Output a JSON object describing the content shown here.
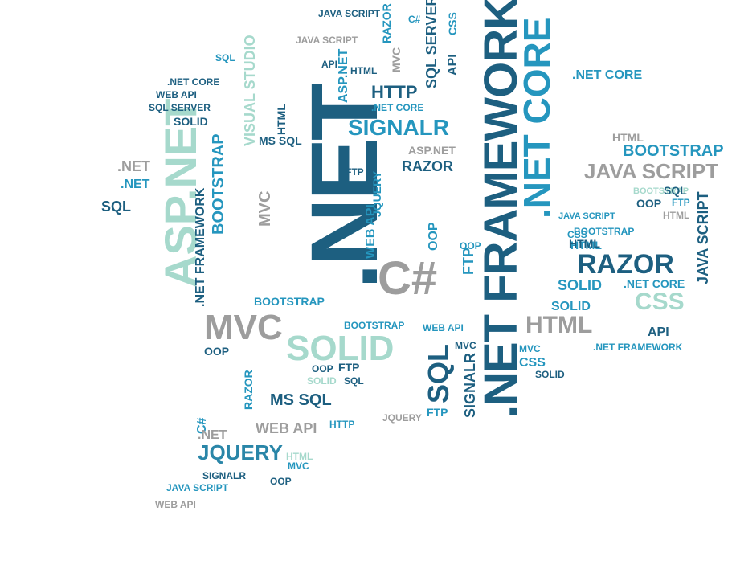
{
  "cloud": {
    "net_big": ".NET",
    "net_framework_big": ".NET FRAMEWORK",
    "net_core_big": ".NET CORE",
    "aspnet_big": "ASP.NET",
    "csharp_big": "C#",
    "solid_big": "SOLID",
    "mvc_big": "MVC",
    "java_script_big": "JAVA SCRIPT",
    "razor_big": "RAZOR",
    "signalr_big": "SIGNALR",
    "html_big": "HTML",
    "css_big": "CSS",
    "sql_big": "SQL",
    "jquery_big": "JQUERY",
    "ms_sql": "MS SQL",
    "web_api": "WEB API",
    "bootstrap": "BOOTSTRAP",
    "http": "HTTP",
    "sql_server": "SQL SERVER",
    "visual_studio": "VISUAL STUDIO",
    "net_framework": ".NET FRAMEWORK",
    "net_core": ".NET CORE",
    "net": ".NET",
    "asp_net": "ASP.NET",
    "java_script": "JAVA SCRIPT",
    "api": "API",
    "oop": "OOP",
    "ftp": "FTP",
    "mvc": "MVC",
    "csharp": "C#",
    "solid": "SOLID",
    "razor": "RAZOR",
    "html": "HTML",
    "css": "CSS",
    "sql": "SQL",
    "jquery": "JQUERY",
    "signalr": "SIGNALR"
  },
  "colors": {
    "dark_blue": "#1a6f93",
    "teal": "#2596be",
    "grey": "#9d9d9d",
    "mint": "#a6d9cc"
  }
}
